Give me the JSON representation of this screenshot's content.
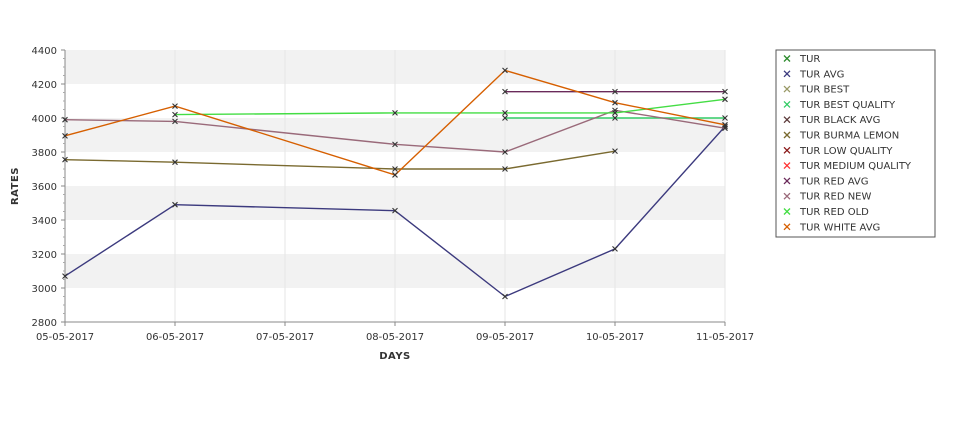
{
  "chart_data": {
    "type": "line",
    "xlabel": "DAYS",
    "ylabel": "RATES",
    "x": [
      "05-05-2017",
      "06-05-2017",
      "07-05-2017",
      "08-05-2017",
      "09-05-2017",
      "10-05-2017",
      "11-05-2017"
    ],
    "ylim": [
      2800,
      4400
    ],
    "yticks": [
      2800,
      3000,
      3200,
      3400,
      3600,
      3800,
      4000,
      4200,
      4400
    ],
    "grid": "alternating horizontal bands",
    "legend_position": "right",
    "series": [
      {
        "name": "TUR",
        "color": "#2e8b2e",
        "values": [
          null,
          null,
          null,
          null,
          null,
          null,
          null
        ]
      },
      {
        "name": "TUR AVG",
        "color": "#3c3a7e",
        "values": [
          3070,
          3490,
          null,
          3455,
          2950,
          3230,
          3950
        ]
      },
      {
        "name": "TUR BEST",
        "color": "#999966",
        "values": [
          null,
          null,
          null,
          null,
          null,
          null,
          null
        ]
      },
      {
        "name": "TUR BEST QUALITY",
        "color": "#33cc66",
        "values": [
          null,
          null,
          null,
          null,
          4000,
          4000,
          4000
        ]
      },
      {
        "name": "TUR BLACK AVG",
        "color": "#5c3a3a",
        "values": [
          null,
          null,
          null,
          null,
          null,
          null,
          null
        ]
      },
      {
        "name": "TUR BURMA LEMON",
        "color": "#7a6a30",
        "values": [
          3755,
          3740,
          null,
          3700,
          3700,
          3805,
          null
        ]
      },
      {
        "name": "TUR LOW QUALITY",
        "color": "#8b1a1a",
        "values": [
          null,
          null,
          null,
          null,
          null,
          null,
          null
        ]
      },
      {
        "name": "TUR MEDIUM QUALITY",
        "color": "#ff3333",
        "values": [
          null,
          null,
          null,
          null,
          null,
          null,
          null
        ]
      },
      {
        "name": "TUR RED AVG",
        "color": "#6a2a5a",
        "values": [
          null,
          null,
          null,
          null,
          4155,
          4155,
          4155
        ]
      },
      {
        "name": "TUR RED NEW",
        "color": "#9a6a7a",
        "values": [
          3990,
          3980,
          null,
          3845,
          3800,
          4045,
          3940
        ]
      },
      {
        "name": "TUR RED OLD",
        "color": "#44dd44",
        "values": [
          null,
          4020,
          null,
          4030,
          4030,
          4030,
          4110
        ]
      },
      {
        "name": "TUR WHITE AVG",
        "color": "#d65f00",
        "values": [
          3895,
          4070,
          null,
          3665,
          4280,
          4090,
          3960
        ]
      }
    ]
  }
}
